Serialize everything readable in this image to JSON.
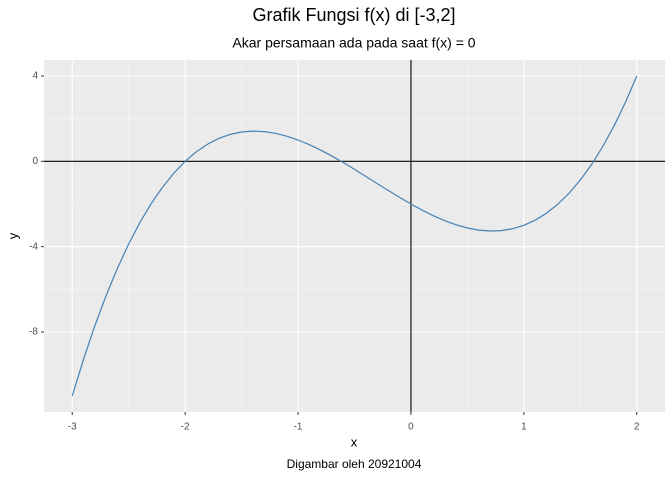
{
  "chart_data": {
    "type": "line",
    "title": "Grafik Fungsi f(x) di [-3,2]",
    "subtitle": "Akar persamaan ada pada saat f(x) = 0",
    "xlabel": "x",
    "ylabel": "y",
    "caption": "Digambar oleh 20921004",
    "x": [
      -3,
      -2.9,
      -2.8,
      -2.7,
      -2.6,
      -2.5,
      -2.4,
      -2.3,
      -2.2,
      -2.1,
      -2,
      -1.9,
      -1.8,
      -1.7,
      -1.6,
      -1.5,
      -1.4,
      -1.3,
      -1.2,
      -1.1,
      -1,
      -0.9,
      -0.8,
      -0.7,
      -0.6,
      -0.5,
      -0.4,
      -0.3,
      -0.2,
      -0.1,
      0,
      0.1,
      0.2,
      0.3,
      0.4,
      0.5,
      0.6,
      0.7,
      0.8,
      0.9,
      1,
      1.1,
      1.2,
      1.3,
      1.4,
      1.5,
      1.6,
      1.7,
      1.8,
      1.9,
      2
    ],
    "series": [
      {
        "color": "#4682b4",
        "values": [
          -11,
          -9.279,
          -7.712,
          -6.293,
          -5.016,
          -3.875,
          -2.864,
          -1.977,
          -1.208,
          -0.551,
          0,
          0.451,
          0.808,
          1.077,
          1.264,
          1.375,
          1.416,
          1.393,
          1.312,
          1.179,
          1,
          0.781,
          0.528,
          0.247,
          -0.056,
          -0.375,
          -0.704,
          -1.037,
          -1.368,
          -1.691,
          -2,
          -2.289,
          -2.552,
          -2.783,
          -2.976,
          -3.125,
          -3.224,
          -3.267,
          -3.248,
          -3.161,
          -3,
          -2.759,
          -2.432,
          -2.013,
          -1.496,
          -0.875,
          -0.144,
          0.703,
          1.672,
          2.769,
          4
        ]
      }
    ],
    "xlim": [
      -3.25,
      2.25
    ],
    "ylim": [
      -11.75,
      4.75
    ],
    "xticks": [
      -3,
      -2,
      -1,
      0,
      1,
      2
    ],
    "yticks": [
      -8,
      -4,
      0,
      4
    ],
    "hline": 0,
    "vline": 0,
    "grid": true
  }
}
